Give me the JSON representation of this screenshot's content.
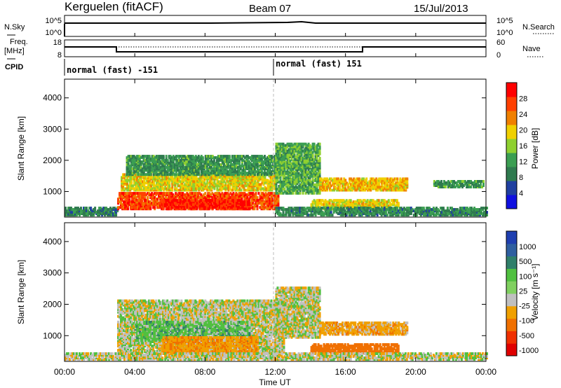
{
  "header": {
    "station": "Kerguelen (fitACF)",
    "beam": "Beam 07",
    "date": "15/Jul/2013"
  },
  "noise_panel": {
    "left_label": "N.Sky",
    "right_label": "N.Search",
    "left_ticks": [
      "10^5",
      "10^0"
    ],
    "right_ticks": [
      "10^5",
      "10^0"
    ]
  },
  "freq_panel": {
    "left_label": "Freq.",
    "left_unit": "[MHz]",
    "left_ticks": [
      "18",
      "8"
    ],
    "right_label": "Nave",
    "right_ticks": [
      "60",
      "0"
    ]
  },
  "cpid_panel": {
    "label": "CPID",
    "segments": [
      "normal (fast) -151",
      "normal (fast) 151"
    ]
  },
  "x_axis": {
    "ticks": [
      "00:00",
      "04:00",
      "08:00",
      "12:00",
      "16:00",
      "20:00",
      "00:00"
    ],
    "label": "Time UT"
  },
  "y_axis": {
    "label": "Slant Range [km]",
    "ticks": [
      "1000",
      "2000",
      "3000",
      "4000"
    ]
  },
  "power_colorbar": {
    "label": "Power [dB]",
    "ticks": [
      "4",
      "8",
      "12",
      "16",
      "20",
      "24",
      "28"
    ]
  },
  "velocity_colorbar": {
    "label": "Velocity [m s⁻¹]",
    "ticks": [
      "1000",
      "500",
      "100",
      "25",
      "-25",
      "-100",
      "-500",
      "-1000"
    ]
  },
  "chart_data": [
    {
      "type": "heatmap",
      "name": "Power",
      "x_range_hours": [
        0,
        24
      ],
      "y_range_km": [
        180,
        4600
      ],
      "value_range_db": [
        0,
        30
      ],
      "colormap": [
        "#1010e0",
        "#2040a0",
        "#2f7a4f",
        "#3b9e52",
        "#8fd030",
        "#f0d000",
        "#f08000",
        "#ff4000",
        "#ff0000"
      ],
      "regions": [
        {
          "t0": 0.0,
          "t1": 3.0,
          "r0": 200,
          "r1": 450,
          "level": 8
        },
        {
          "t0": 3.0,
          "t1": 12.2,
          "r0": 400,
          "r1": 900,
          "level": 26
        },
        {
          "t0": 5.5,
          "t1": 10.5,
          "r0": 400,
          "r1": 700,
          "level": 29
        },
        {
          "t0": 3.2,
          "t1": 12.0,
          "r0": 1000,
          "r1": 1500,
          "level": 18
        },
        {
          "t0": 3.5,
          "t1": 12.5,
          "r0": 1500,
          "r1": 2100,
          "level": 10
        },
        {
          "t0": 12.0,
          "t1": 14.5,
          "r0": 900,
          "r1": 2500,
          "level": 12
        },
        {
          "t0": 14.5,
          "t1": 19.5,
          "r0": 1000,
          "r1": 1400,
          "level": 20
        },
        {
          "t0": 14.0,
          "t1": 19.0,
          "r0": 400,
          "r1": 700,
          "level": 18
        },
        {
          "t0": 21.0,
          "t1": 23.8,
          "r0": 1100,
          "r1": 1300,
          "level": 10
        },
        {
          "t0": 12.0,
          "t1": 24.0,
          "r0": 200,
          "r1": 450,
          "level": 9
        }
      ]
    },
    {
      "type": "heatmap",
      "name": "Velocity",
      "x_range_hours": [
        0,
        24
      ],
      "y_range_km": [
        180,
        4600
      ],
      "value_range_ms": [
        -1000,
        1000
      ],
      "regions": [
        {
          "t0": 3.0,
          "t1": 12.5,
          "r0": 400,
          "r1": 2100,
          "value": 0
        },
        {
          "t0": 4.0,
          "t1": 10.5,
          "r0": 800,
          "r1": 1400,
          "value": 60
        },
        {
          "t0": 5.5,
          "t1": 11.0,
          "r0": 400,
          "r1": 900,
          "value": -80
        },
        {
          "t0": 12.0,
          "t1": 14.5,
          "r0": 900,
          "r1": 2500,
          "value": 0
        },
        {
          "t0": 14.5,
          "t1": 19.5,
          "r0": 1000,
          "r1": 1400,
          "value": -60
        },
        {
          "t0": 14.0,
          "t1": 19.0,
          "r0": 400,
          "r1": 700,
          "value": -300
        },
        {
          "t0": 0.0,
          "t1": 24.0,
          "r0": 200,
          "r1": 420,
          "value": 0
        }
      ]
    }
  ]
}
